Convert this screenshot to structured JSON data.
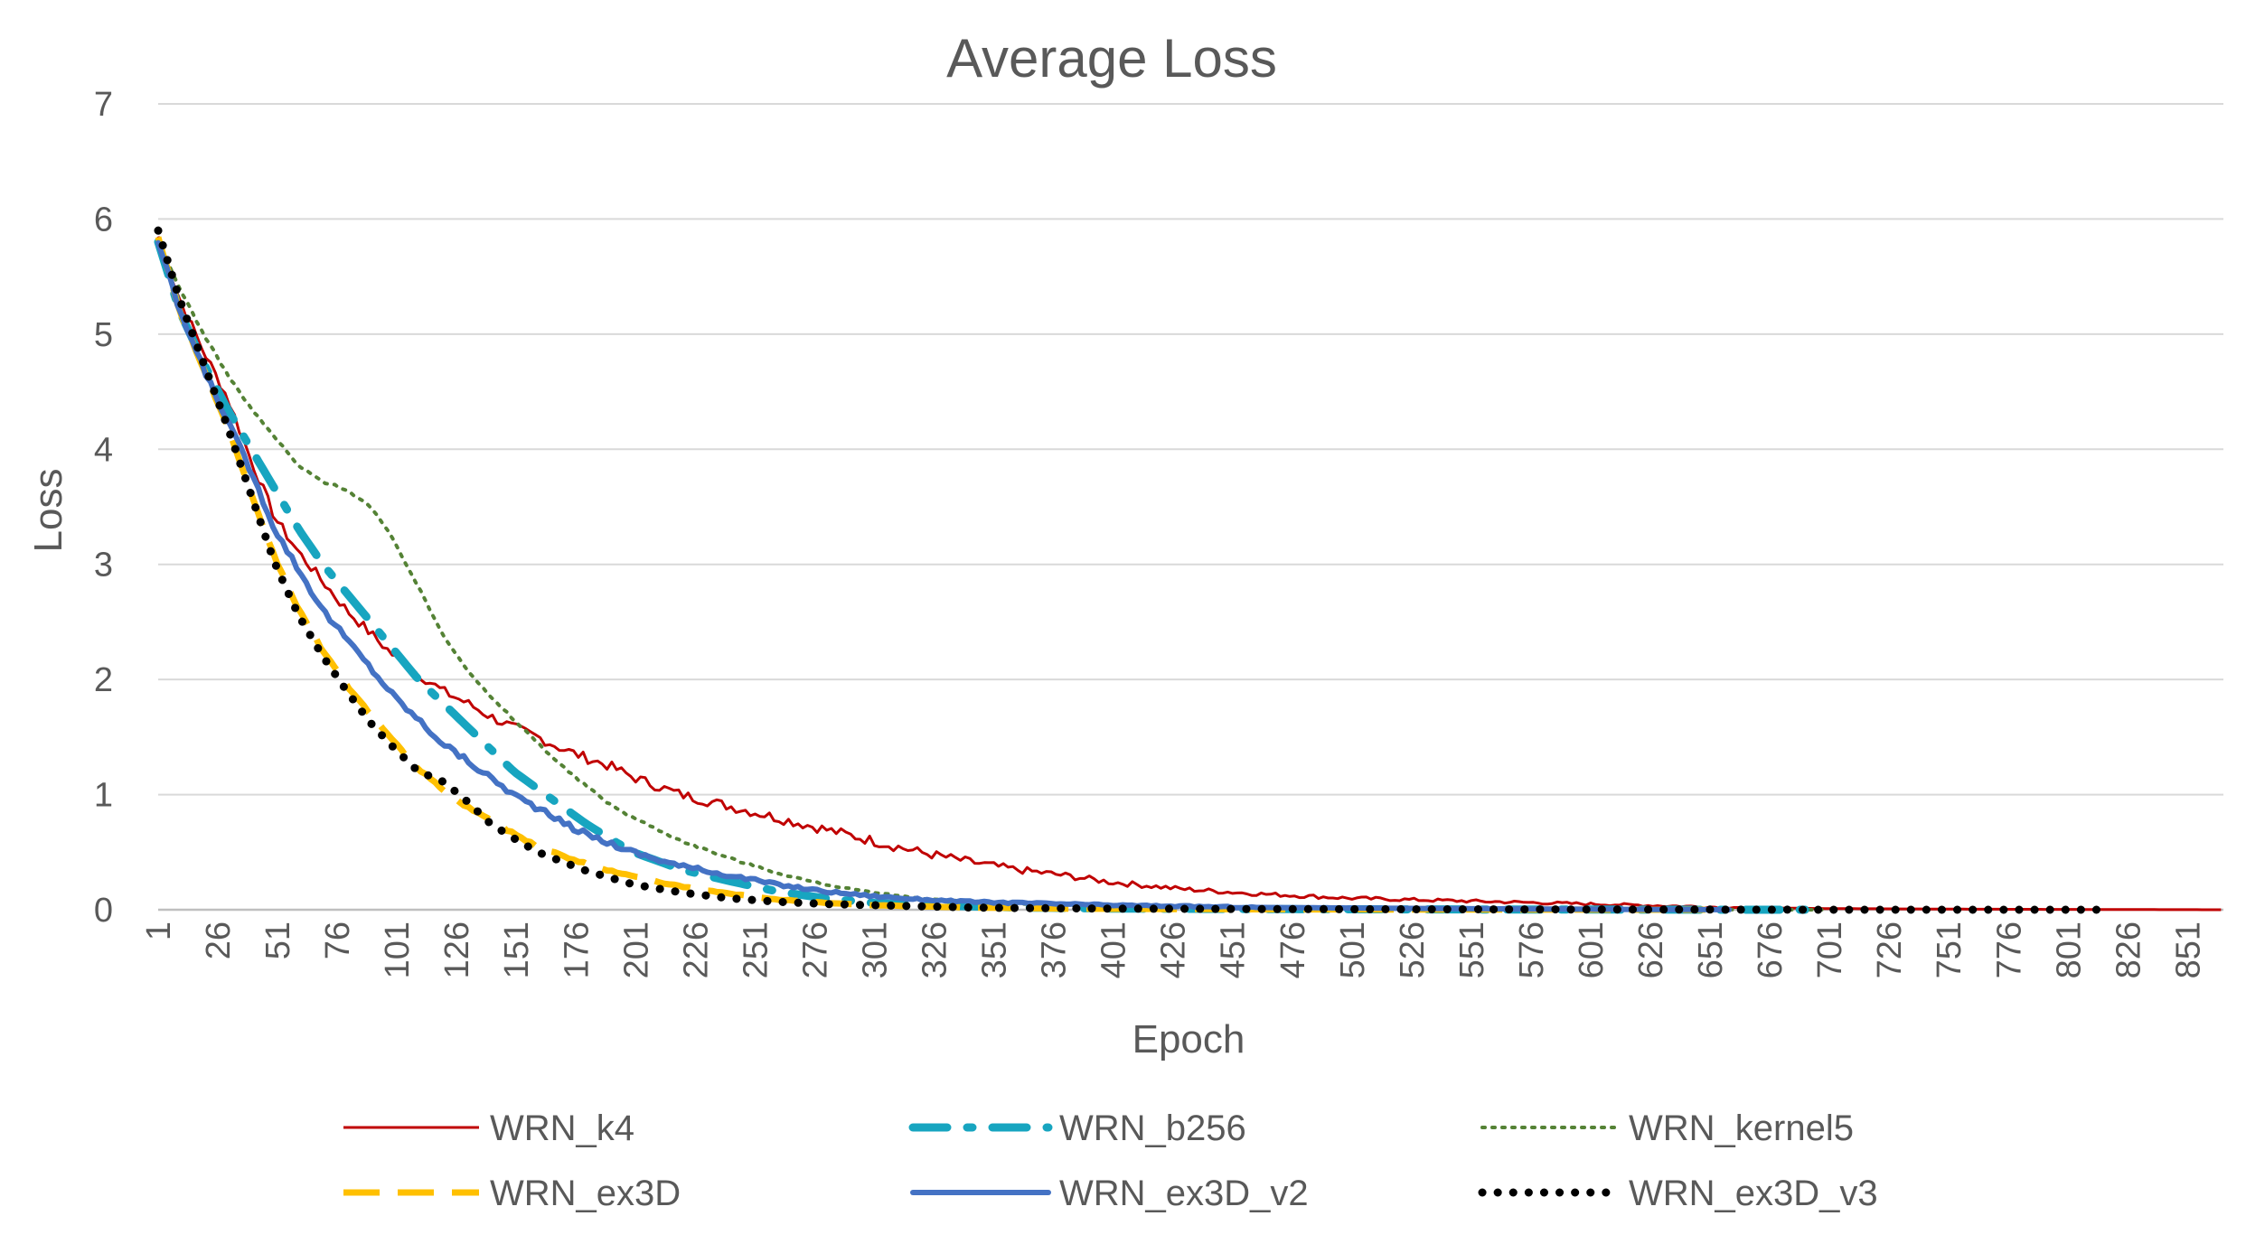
{
  "chart_data": {
    "type": "line",
    "title": "Average Loss",
    "xlabel": "Epoch",
    "ylabel": "Loss",
    "ylim": [
      0,
      7
    ],
    "xlim": [
      1,
      866
    ],
    "y_ticks": [
      0,
      1,
      2,
      3,
      4,
      5,
      6,
      7
    ],
    "x_ticks": [
      1,
      26,
      51,
      76,
      101,
      126,
      151,
      176,
      201,
      226,
      251,
      276,
      301,
      326,
      351,
      376,
      401,
      426,
      451,
      476,
      501,
      526,
      551,
      576,
      601,
      626,
      651,
      676,
      701,
      726,
      751,
      776,
      801,
      826,
      851
    ],
    "grid": true,
    "legend_position": "bottom",
    "series": [
      {
        "name": "WRN_k4",
        "color": "#C00000",
        "style": "solid-thin",
        "end_epoch": 866,
        "x": [
          1,
          10,
          20,
          30,
          40,
          50,
          60,
          70,
          80,
          90,
          100,
          110,
          120,
          130,
          140,
          150,
          160,
          170,
          180,
          190,
          200,
          220,
          240,
          260,
          280,
          300,
          320,
          340,
          360,
          380,
          400,
          430,
          460,
          500,
          540,
          580,
          620,
          660,
          700,
          760,
          820,
          866
        ],
        "y": [
          5.85,
          5.3,
          4.85,
          4.45,
          3.9,
          3.4,
          3.1,
          2.85,
          2.6,
          2.4,
          2.2,
          2.05,
          1.9,
          1.8,
          1.68,
          1.58,
          1.5,
          1.4,
          1.32,
          1.25,
          1.15,
          1.0,
          0.9,
          0.8,
          0.7,
          0.6,
          0.5,
          0.42,
          0.35,
          0.3,
          0.24,
          0.18,
          0.14,
          0.1,
          0.08,
          0.06,
          0.04,
          0.02,
          0.01,
          0.005,
          0.002,
          0.0
        ]
      },
      {
        "name": "WRN_b256",
        "color": "#17A5C0",
        "style": "long-dash-dot",
        "end_epoch": 700,
        "x": [
          1,
          10,
          20,
          30,
          40,
          50,
          60,
          70,
          80,
          90,
          100,
          110,
          120,
          130,
          140,
          150,
          160,
          170,
          180,
          190,
          200,
          220,
          240,
          260,
          280,
          300,
          320,
          340,
          360,
          380,
          400,
          430,
          460,
          500,
          540,
          580,
          620,
          660,
          700
        ],
        "y": [
          5.8,
          5.2,
          4.75,
          4.35,
          4.0,
          3.65,
          3.3,
          3.0,
          2.75,
          2.5,
          2.25,
          2.0,
          1.8,
          1.6,
          1.4,
          1.2,
          1.05,
          0.9,
          0.75,
          0.62,
          0.5,
          0.35,
          0.25,
          0.16,
          0.1,
          0.06,
          0.04,
          0.03,
          0.02,
          0.015,
          0.01,
          0.008,
          0.006,
          0.004,
          0.003,
          0.002,
          0.001,
          0.0,
          0.0
        ]
      },
      {
        "name": "WRN_kernel5",
        "color": "#548235",
        "style": "dotted-thin",
        "end_epoch": 700,
        "x": [
          1,
          10,
          20,
          30,
          40,
          50,
          60,
          70,
          80,
          90,
          100,
          110,
          120,
          130,
          140,
          150,
          160,
          170,
          180,
          190,
          200,
          220,
          240,
          260,
          280,
          300,
          320,
          340,
          360,
          380,
          400,
          430,
          460,
          500,
          540,
          580,
          620,
          660,
          700
        ],
        "y": [
          5.8,
          5.4,
          5.0,
          4.65,
          4.35,
          4.1,
          3.85,
          3.72,
          3.65,
          3.5,
          3.2,
          2.8,
          2.4,
          2.1,
          1.85,
          1.65,
          1.45,
          1.25,
          1.08,
          0.92,
          0.8,
          0.6,
          0.45,
          0.32,
          0.22,
          0.15,
          0.1,
          0.07,
          0.05,
          0.04,
          0.03,
          0.02,
          0.015,
          0.01,
          0.007,
          0.005,
          0.003,
          0.001,
          0.0
        ]
      },
      {
        "name": "WRN_ex3D",
        "color": "#FFC000",
        "style": "long-dash",
        "end_epoch": 650,
        "x": [
          1,
          10,
          20,
          30,
          40,
          50,
          60,
          70,
          80,
          90,
          100,
          110,
          120,
          130,
          140,
          150,
          160,
          170,
          180,
          190,
          200,
          220,
          240,
          260,
          280,
          300,
          320,
          340,
          360,
          380,
          400,
          430,
          460,
          500,
          540,
          580,
          620,
          650
        ],
        "y": [
          5.85,
          5.2,
          4.7,
          4.2,
          3.6,
          3.05,
          2.6,
          2.25,
          1.95,
          1.7,
          1.45,
          1.22,
          1.05,
          0.9,
          0.78,
          0.66,
          0.55,
          0.47,
          0.4,
          0.34,
          0.29,
          0.2,
          0.14,
          0.09,
          0.06,
          0.04,
          0.03,
          0.02,
          0.015,
          0.01,
          0.008,
          0.006,
          0.004,
          0.003,
          0.002,
          0.001,
          0.0,
          0.0
        ]
      },
      {
        "name": "WRN_ex3D_v2",
        "color": "#4472C4",
        "style": "solid-thick",
        "end_epoch": 660,
        "x": [
          1,
          10,
          20,
          30,
          40,
          50,
          60,
          70,
          80,
          90,
          100,
          110,
          120,
          130,
          140,
          150,
          160,
          170,
          180,
          190,
          200,
          220,
          240,
          260,
          280,
          300,
          320,
          340,
          360,
          380,
          400,
          430,
          460,
          500,
          540,
          580,
          620,
          660
        ],
        "y": [
          5.8,
          5.2,
          4.7,
          4.25,
          3.8,
          3.3,
          2.95,
          2.6,
          2.35,
          2.1,
          1.85,
          1.65,
          1.45,
          1.3,
          1.15,
          1.0,
          0.88,
          0.76,
          0.66,
          0.58,
          0.5,
          0.38,
          0.3,
          0.22,
          0.16,
          0.12,
          0.09,
          0.07,
          0.06,
          0.05,
          0.04,
          0.03,
          0.02,
          0.015,
          0.01,
          0.006,
          0.003,
          0.0
        ]
      },
      {
        "name": "WRN_ex3D_v3",
        "color": "#000000",
        "style": "round-dot",
        "end_epoch": 815,
        "x": [
          1,
          10,
          20,
          30,
          40,
          50,
          60,
          70,
          80,
          90,
          100,
          110,
          120,
          130,
          140,
          150,
          160,
          170,
          180,
          190,
          200,
          220,
          240,
          260,
          280,
          300,
          320,
          340,
          360,
          380,
          400,
          430,
          460,
          500,
          540,
          580,
          620,
          660,
          700,
          760,
          815
        ],
        "y": [
          5.9,
          5.3,
          4.75,
          4.2,
          3.6,
          3.0,
          2.55,
          2.2,
          1.9,
          1.62,
          1.4,
          1.2,
          1.12,
          0.95,
          0.75,
          0.62,
          0.5,
          0.42,
          0.34,
          0.28,
          0.22,
          0.15,
          0.1,
          0.07,
          0.05,
          0.04,
          0.03,
          0.02,
          0.015,
          0.012,
          0.01,
          0.008,
          0.006,
          0.005,
          0.004,
          0.003,
          0.002,
          0.001,
          0.0,
          0.0,
          0.0
        ]
      }
    ]
  }
}
